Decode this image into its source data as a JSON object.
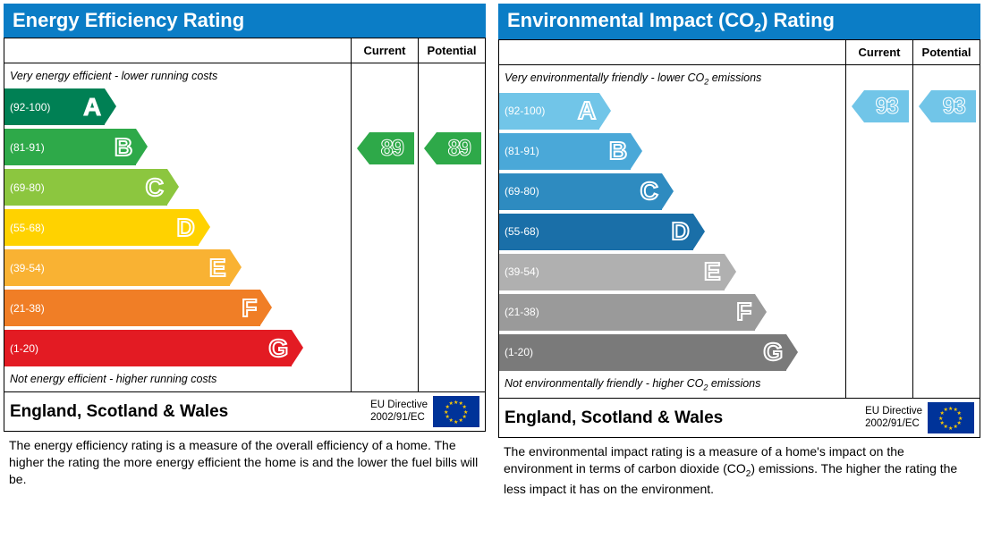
{
  "titlebar_color": "#0b7dc6",
  "panels": [
    {
      "title": "Energy Efficiency Rating",
      "title_has_co2": false,
      "header_current": "Current",
      "header_potential": "Potential",
      "top_note": "Very energy efficient - lower running costs",
      "bottom_note": "Not energy efficient - higher running costs",
      "bands": [
        {
          "range": "(92-100)",
          "letter": "A",
          "color": "#008054",
          "width_pct": 29,
          "letter_style": "solid"
        },
        {
          "range": "(81-91)",
          "letter": "B",
          "color": "#2ea949",
          "width_pct": 38,
          "letter_style": "outline"
        },
        {
          "range": "(69-80)",
          "letter": "C",
          "color": "#8cc63f",
          "width_pct": 47,
          "letter_style": "outline"
        },
        {
          "range": "(55-68)",
          "letter": "D",
          "color": "#ffd200",
          "width_pct": 56,
          "letter_style": "outline"
        },
        {
          "range": "(39-54)",
          "letter": "E",
          "color": "#f9b233",
          "width_pct": 65,
          "letter_style": "outline"
        },
        {
          "range": "(21-38)",
          "letter": "F",
          "color": "#f07e26",
          "width_pct": 74,
          "letter_style": "outline"
        },
        {
          "range": "(1-20)",
          "letter": "G",
          "color": "#e31b23",
          "width_pct": 83,
          "letter_style": "outline"
        }
      ],
      "current_value": 89,
      "potential_value": 89,
      "pointer_color": "#2ea949",
      "pointer_band_index": 1,
      "region": "England, Scotland & Wales",
      "directive_l1": "EU Directive",
      "directive_l2": "2002/91/EC",
      "description": "The energy efficiency rating is a measure of the overall efficiency of a home. The higher the rating the more energy efficient the home is and the lower the fuel bills will be."
    },
    {
      "title": "Environmental Impact (CO₂) Rating",
      "title_has_co2": true,
      "header_current": "Current",
      "header_potential": "Potential",
      "top_note": "Very environmentally friendly - lower CO₂ emissions",
      "bottom_note": "Not environmentally friendly - higher CO₂ emissions",
      "bands": [
        {
          "range": "(92-100)",
          "letter": "A",
          "color": "#71c5e8",
          "width_pct": 29,
          "letter_style": "outline"
        },
        {
          "range": "(81-91)",
          "letter": "B",
          "color": "#4aa8d8",
          "width_pct": 38,
          "letter_style": "outline"
        },
        {
          "range": "(69-80)",
          "letter": "C",
          "color": "#2e8bc0",
          "width_pct": 47,
          "letter_style": "outline"
        },
        {
          "range": "(55-68)",
          "letter": "D",
          "color": "#1a6fa8",
          "width_pct": 56,
          "letter_style": "outline"
        },
        {
          "range": "(39-54)",
          "letter": "E",
          "color": "#b0b0b0",
          "width_pct": 65,
          "letter_style": "outline"
        },
        {
          "range": "(21-38)",
          "letter": "F",
          "color": "#9a9a9a",
          "width_pct": 74,
          "letter_style": "outline"
        },
        {
          "range": "(1-20)",
          "letter": "G",
          "color": "#7a7a7a",
          "width_pct": 83,
          "letter_style": "outline"
        }
      ],
      "current_value": 93,
      "potential_value": 93,
      "pointer_color": "#71c5e8",
      "pointer_band_index": 0,
      "region": "England, Scotland & Wales",
      "directive_l1": "EU Directive",
      "directive_l2": "2002/91/EC",
      "description": "The environmental impact rating is a measure of a home's impact on the environment in terms of carbon dioxide (CO₂) emissions. The higher the rating the less impact it has on the environment."
    }
  ]
}
